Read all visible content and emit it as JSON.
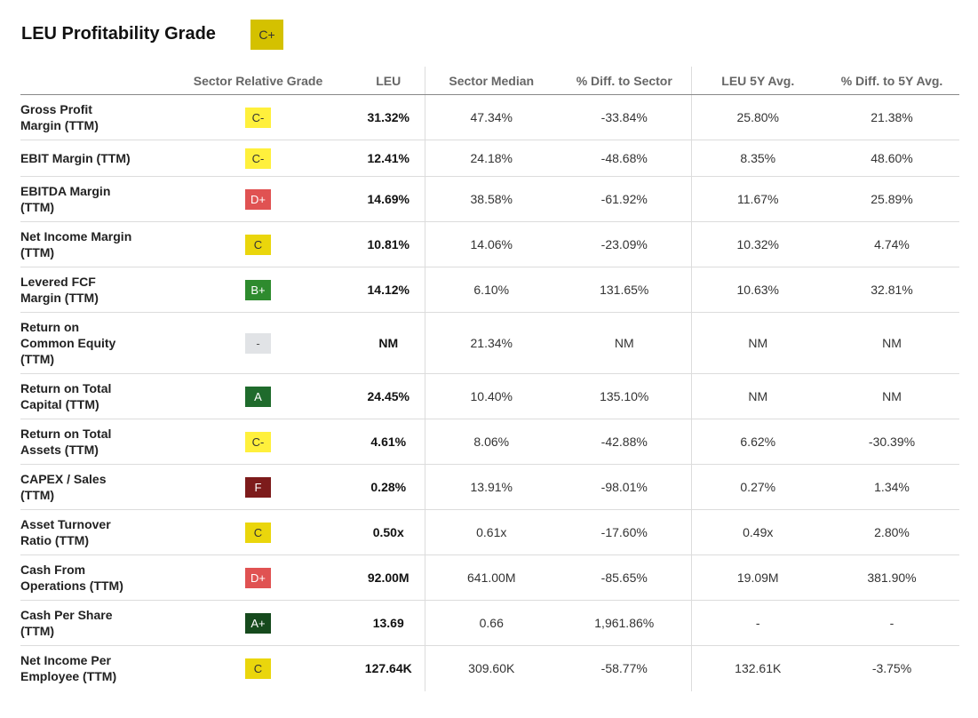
{
  "title": "LEU Profitability Grade",
  "overall_grade": {
    "label": "C+",
    "color": "#d4c100",
    "text_color": "#333333"
  },
  "columns": [
    "",
    "Sector Relative Grade",
    "LEU",
    "Sector Median",
    "% Diff. to Sector",
    "LEU 5Y Avg.",
    "% Diff. to 5Y Avg."
  ],
  "rows": [
    {
      "metric_lines": [
        "Gross Profit",
        "Margin (TTM)"
      ],
      "grade": "C-",
      "grade_color": "#fff03c",
      "grade_text": "#333333",
      "leu": "31.32%",
      "sector_median": "47.34%",
      "diff_sector": "-33.84%",
      "avg_5y": "25.80%",
      "diff_5y": "21.38%"
    },
    {
      "metric_lines": [
        "EBIT Margin (TTM)"
      ],
      "grade": "C-",
      "grade_color": "#fff03c",
      "grade_text": "#333333",
      "leu": "12.41%",
      "sector_median": "24.18%",
      "diff_sector": "-48.68%",
      "avg_5y": "8.35%",
      "diff_5y": "48.60%"
    },
    {
      "metric_lines": [
        "EBITDA Margin",
        "(TTM)"
      ],
      "grade": "D+",
      "grade_color": "#e05252",
      "grade_text": "#ffffff",
      "leu": "14.69%",
      "sector_median": "38.58%",
      "diff_sector": "-61.92%",
      "avg_5y": "11.67%",
      "diff_5y": "25.89%"
    },
    {
      "metric_lines": [
        "Net Income Margin",
        "(TTM)"
      ],
      "grade": "C",
      "grade_color": "#ead60c",
      "grade_text": "#333333",
      "leu": "10.81%",
      "sector_median": "14.06%",
      "diff_sector": "-23.09%",
      "avg_5y": "10.32%",
      "diff_5y": "4.74%"
    },
    {
      "metric_lines": [
        "Levered FCF",
        "Margin (TTM)"
      ],
      "grade": "B+",
      "grade_color": "#2e8b2e",
      "grade_text": "#ffffff",
      "leu": "14.12%",
      "sector_median": "6.10%",
      "diff_sector": "131.65%",
      "avg_5y": "10.63%",
      "diff_5y": "32.81%"
    },
    {
      "metric_lines": [
        "Return on",
        "Common Equity",
        "(TTM)"
      ],
      "grade": "-",
      "grade_color": "#e1e3e6",
      "grade_text": "#555555",
      "leu": "NM",
      "sector_median": "21.34%",
      "diff_sector": "NM",
      "avg_5y": "NM",
      "diff_5y": "NM"
    },
    {
      "metric_lines": [
        "Return on Total",
        "Capital (TTM)"
      ],
      "grade": "A",
      "grade_color": "#1f6b2c",
      "grade_text": "#ffffff",
      "leu": "24.45%",
      "sector_median": "10.40%",
      "diff_sector": "135.10%",
      "avg_5y": "NM",
      "diff_5y": "NM"
    },
    {
      "metric_lines": [
        "Return on Total",
        "Assets (TTM)"
      ],
      "grade": "C-",
      "grade_color": "#fff03c",
      "grade_text": "#333333",
      "leu": "4.61%",
      "sector_median": "8.06%",
      "diff_sector": "-42.88%",
      "avg_5y": "6.62%",
      "diff_5y": "-30.39%"
    },
    {
      "metric_lines": [
        "CAPEX / Sales",
        "(TTM)"
      ],
      "grade": "F",
      "grade_color": "#7d1b1b",
      "grade_text": "#ffffff",
      "leu": "0.28%",
      "sector_median": "13.91%",
      "diff_sector": "-98.01%",
      "avg_5y": "0.27%",
      "diff_5y": "1.34%"
    },
    {
      "metric_lines": [
        "Asset Turnover",
        "Ratio (TTM)"
      ],
      "grade": "C",
      "grade_color": "#ead60c",
      "grade_text": "#333333",
      "leu": "0.50x",
      "sector_median": "0.61x",
      "diff_sector": "-17.60%",
      "avg_5y": "0.49x",
      "diff_5y": "2.80%"
    },
    {
      "metric_lines": [
        "Cash From",
        "Operations (TTM)"
      ],
      "grade": "D+",
      "grade_color": "#e05252",
      "grade_text": "#ffffff",
      "leu": "92.00M",
      "sector_median": "641.00M",
      "diff_sector": "-85.65%",
      "avg_5y": "19.09M",
      "diff_5y": "381.90%"
    },
    {
      "metric_lines": [
        "Cash Per Share",
        "(TTM)"
      ],
      "grade": "A+",
      "grade_color": "#164a1d",
      "grade_text": "#ffffff",
      "leu": "13.69",
      "sector_median": "0.66",
      "diff_sector": "1,961.86%",
      "avg_5y": "-",
      "diff_5y": "-"
    },
    {
      "metric_lines": [
        "Net Income Per",
        "Employee (TTM)"
      ],
      "grade": "C",
      "grade_color": "#ead60c",
      "grade_text": "#333333",
      "leu": "127.64K",
      "sector_median": "309.60K",
      "diff_sector": "-58.77%",
      "avg_5y": "132.61K",
      "diff_5y": "-3.75%"
    }
  ]
}
